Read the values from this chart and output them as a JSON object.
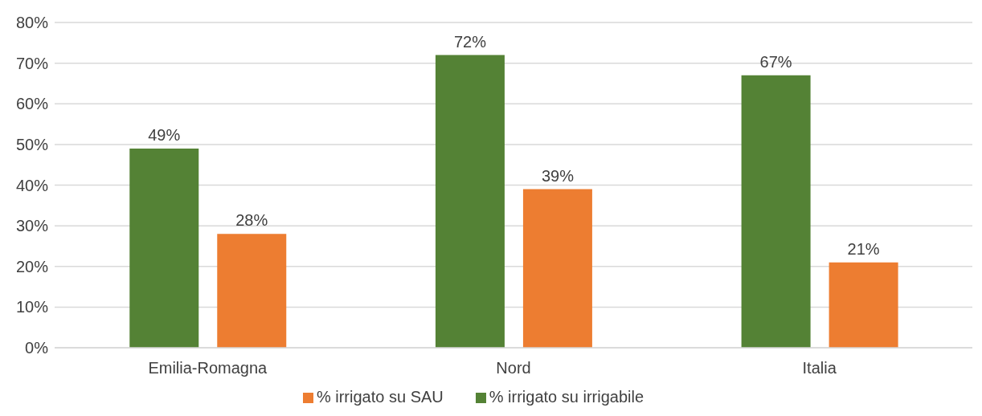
{
  "chart_data": {
    "type": "bar",
    "categories": [
      "Emilia-Romagna",
      "Nord",
      "Italia"
    ],
    "series": [
      {
        "name": "% irrigato su irrigabile",
        "color": "#548235",
        "values": [
          49,
          72,
          67
        ],
        "value_labels": [
          "49%",
          "72%",
          "67%"
        ]
      },
      {
        "name": "% irrigato su SAU",
        "color": "#ed7d31",
        "values": [
          28,
          39,
          21
        ],
        "value_labels": [
          "28%",
          "39%",
          "21%"
        ]
      }
    ],
    "ylim": [
      0,
      80
    ],
    "yticks": [
      {
        "value": 0,
        "label": "0%"
      },
      {
        "value": 10,
        "label": "10%"
      },
      {
        "value": 20,
        "label": "20%"
      },
      {
        "value": 30,
        "label": "30%"
      },
      {
        "value": 40,
        "label": "40%"
      },
      {
        "value": 50,
        "label": "50%"
      },
      {
        "value": 60,
        "label": "60%"
      },
      {
        "value": 70,
        "label": "70%"
      },
      {
        "value": 80,
        "label": "80%"
      }
    ],
    "grid": "y",
    "legend": "bottom"
  }
}
